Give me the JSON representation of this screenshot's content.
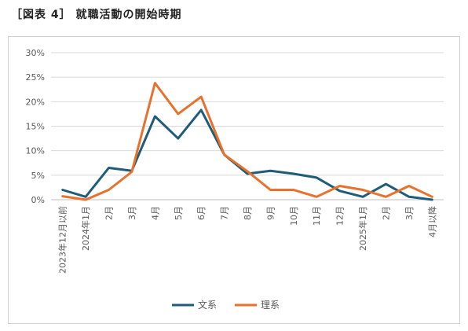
{
  "figure_title": "［図表 4］ 就職活動の開始時期",
  "chart_data": {
    "type": "line",
    "title": "",
    "xlabel": "",
    "ylabel": "",
    "ylim": [
      0,
      30
    ],
    "y_tick_labels": [
      "0%",
      "5%",
      "10%",
      "15%",
      "20%",
      "25%",
      "30%"
    ],
    "y_tick_values": [
      0,
      5,
      10,
      15,
      20,
      25,
      30
    ],
    "categories": [
      "2023年12月以前",
      "2024年1月",
      "2月",
      "3月",
      "4月",
      "5月",
      "6月",
      "7月",
      "8月",
      "9月",
      "10月",
      "11月",
      "12月",
      "2025年1月",
      "2月",
      "3月",
      "4月以降"
    ],
    "grid": true,
    "legend_position": "bottom",
    "series": [
      {
        "name": "文系",
        "color": "#1f5c7a",
        "values": [
          2.0,
          0.6,
          6.5,
          5.9,
          17.0,
          12.5,
          18.3,
          9.2,
          5.3,
          5.9,
          5.3,
          4.5,
          1.8,
          0.6,
          3.2,
          0.6,
          0.0
        ]
      },
      {
        "name": "理系",
        "color": "#e8712c",
        "values": [
          0.7,
          0.0,
          2.0,
          5.7,
          23.8,
          17.5,
          21.0,
          9.2,
          5.8,
          2.0,
          2.0,
          0.6,
          2.8,
          2.0,
          0.6,
          2.8,
          0.6
        ]
      }
    ]
  }
}
